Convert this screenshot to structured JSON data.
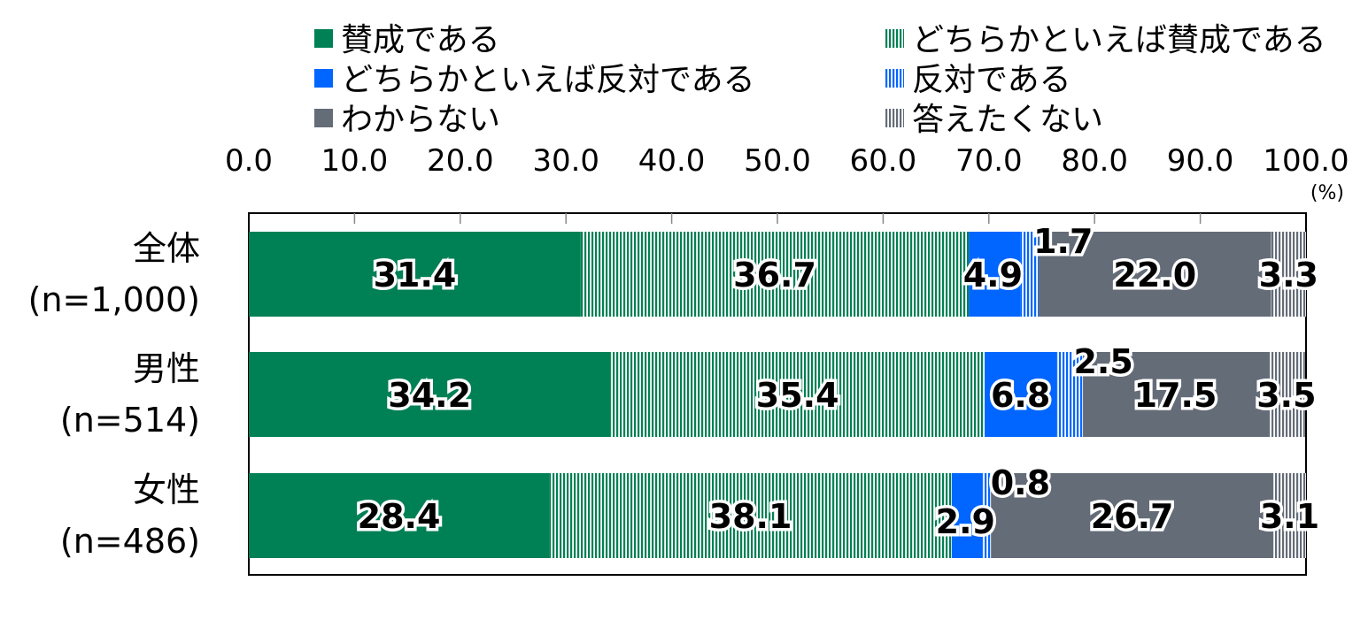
{
  "colors": {
    "agree": "#008055",
    "somewhat_agree": "#008055",
    "somewhat_oppose": "#0066FF",
    "oppose": "#0066FF",
    "dont_know": "#646C78",
    "no_answer": "#646C78"
  },
  "chart_data": {
    "type": "bar",
    "orientation": "horizontal",
    "stacked": true,
    "title": "",
    "unit_label": "(%)",
    "xlim": [
      0,
      100
    ],
    "x_ticks": [
      "0.0",
      "10.0",
      "20.0",
      "30.0",
      "40.0",
      "50.0",
      "60.0",
      "70.0",
      "80.0",
      "90.0",
      "100.0"
    ],
    "legend_position": "top",
    "categories": [
      {
        "name": "全体",
        "n": "(n=1,000)"
      },
      {
        "name": "男性",
        "n": "(n=514)"
      },
      {
        "name": "女性",
        "n": "(n=486)"
      }
    ],
    "series": [
      {
        "name": "賛成である",
        "pattern": "solid",
        "values": [
          31.4,
          34.2,
          28.4
        ],
        "labels": [
          "31.4",
          "34.2",
          "28.4"
        ]
      },
      {
        "name": "どちらかといえば賛成である",
        "pattern": "stripes",
        "values": [
          36.7,
          35.4,
          38.1
        ],
        "labels": [
          "36.7",
          "35.4",
          "38.1"
        ]
      },
      {
        "name": "どちらかといえば反対である",
        "pattern": "solid",
        "values": [
          4.9,
          6.8,
          2.9
        ],
        "labels": [
          "4.9",
          "6.8",
          "2.9"
        ]
      },
      {
        "name": "反対である",
        "pattern": "stripes",
        "values": [
          1.7,
          2.5,
          0.8
        ],
        "labels": [
          "1.7",
          "2.5",
          "0.8"
        ]
      },
      {
        "name": "わからない",
        "pattern": "solid",
        "values": [
          22.0,
          17.5,
          26.7
        ],
        "labels": [
          "22.0",
          "17.5",
          "26.7"
        ]
      },
      {
        "name": "答えたくない",
        "pattern": "stripes",
        "values": [
          3.3,
          3.5,
          3.1
        ],
        "labels": [
          "3.3",
          "3.5",
          "3.1"
        ]
      }
    ]
  }
}
